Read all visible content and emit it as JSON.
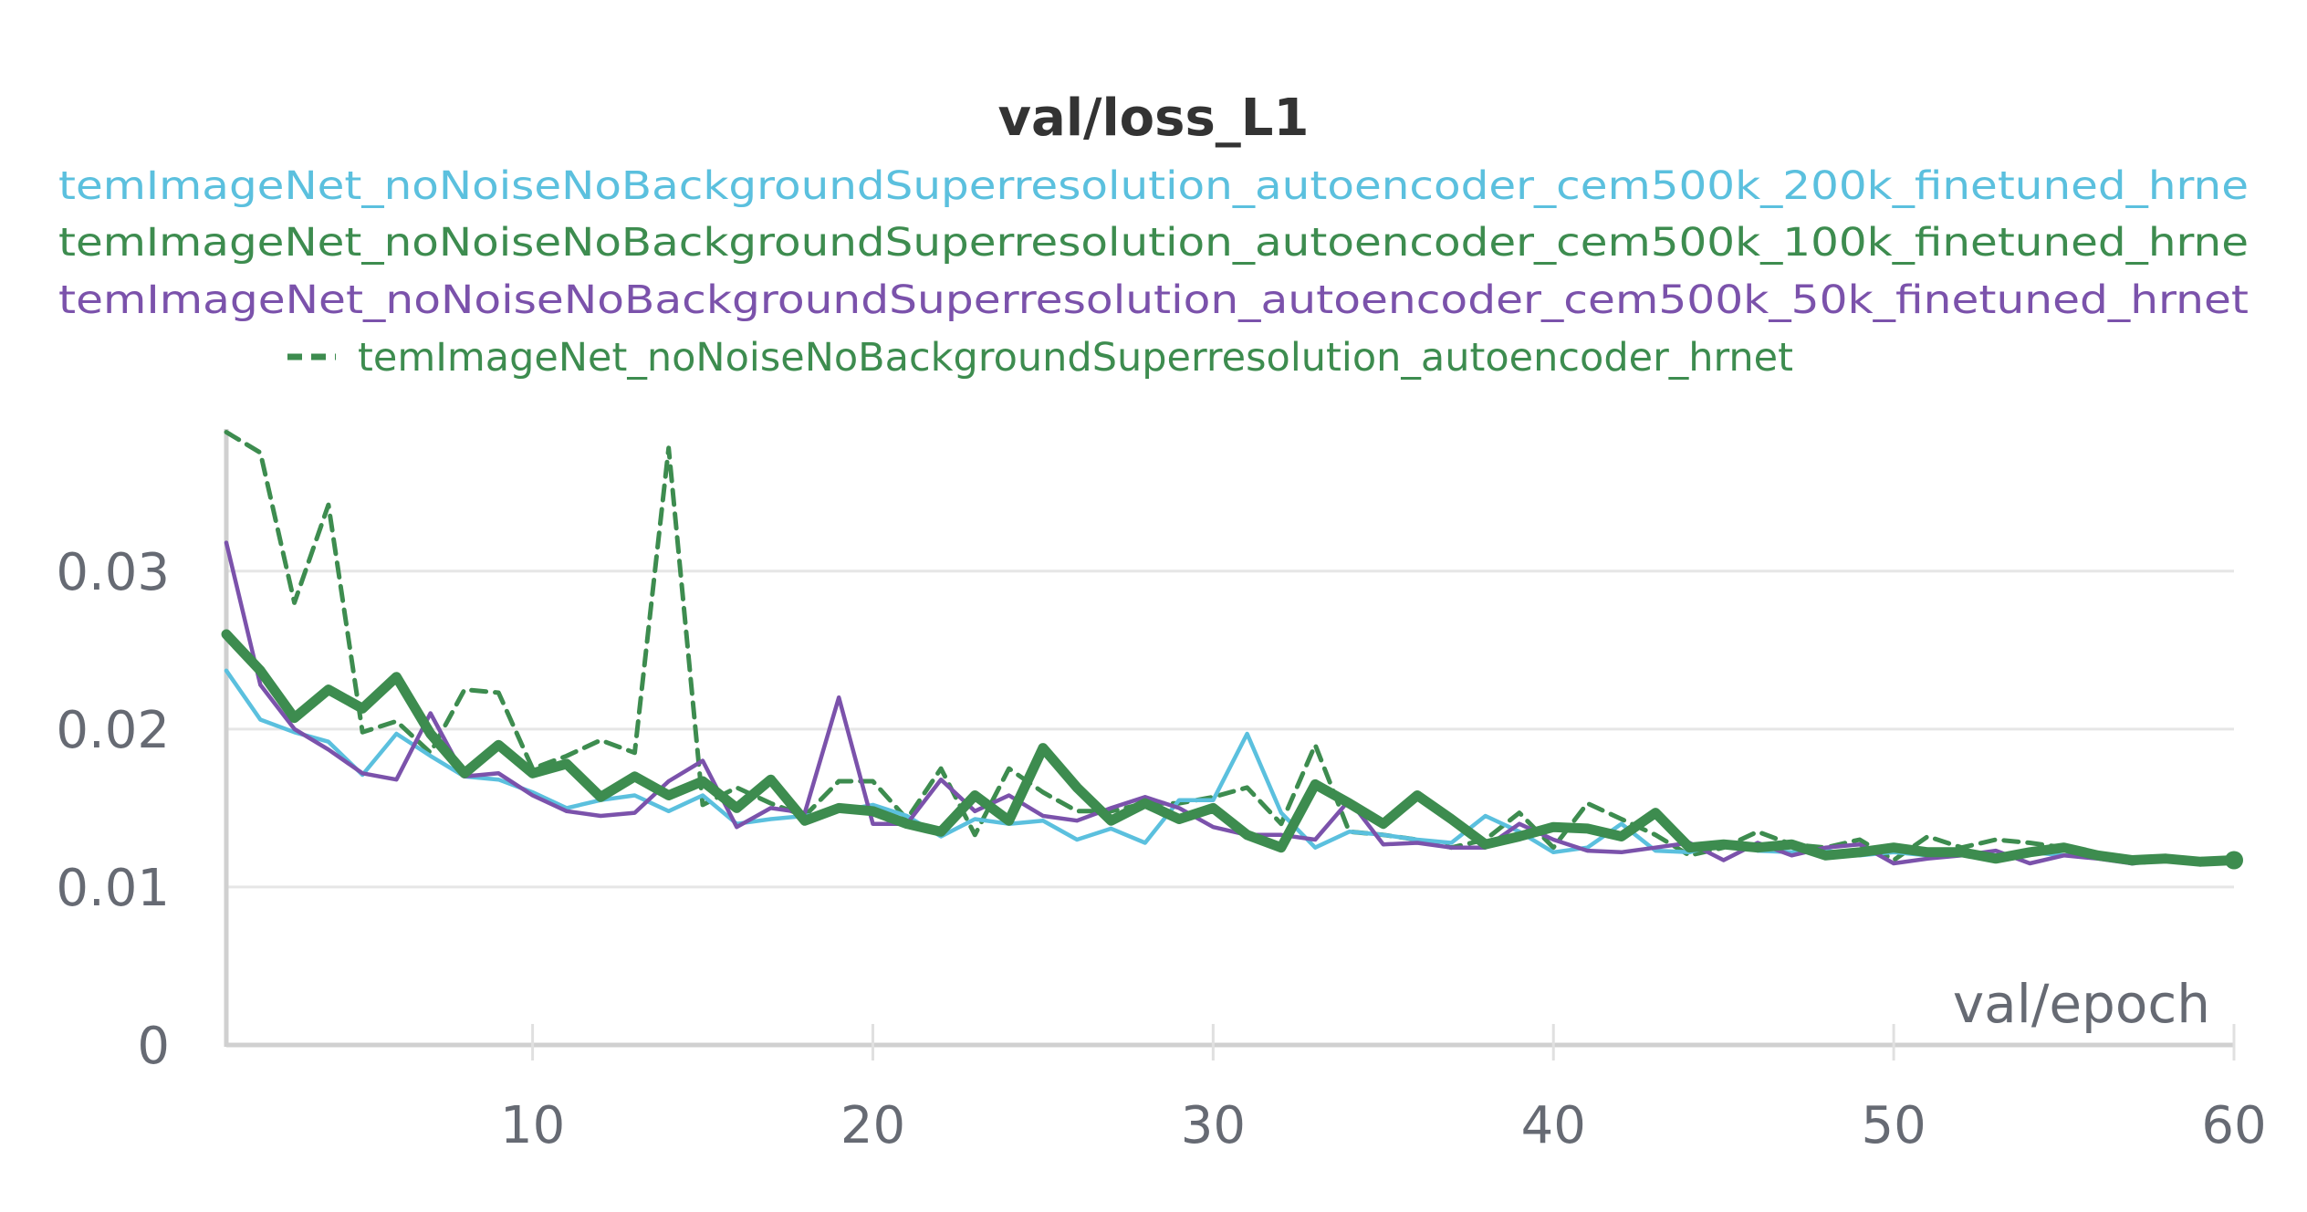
{
  "chart_data": {
    "type": "line",
    "title": "val/loss_L1",
    "xlabel": "val/epoch",
    "ylabel": "",
    "xlim": [
      1,
      60
    ],
    "ylim": [
      0,
      0.039
    ],
    "x_ticks": [
      "10",
      "20",
      "30",
      "40",
      "50",
      "60"
    ],
    "y_ticks": [
      "0",
      "0.01",
      "0.02",
      "0.03"
    ],
    "grid": "horizontal",
    "legend_position": "top",
    "series": [
      {
        "name": "temImageNet_noNoiseNoBackgroundSuperresolution_autoencoder_cem500k_200k_finetuned_hrne",
        "color": "#5bc0de",
        "dash": "solid",
        "width": "thin",
        "x": [
          1,
          2,
          3,
          4,
          5,
          6,
          7,
          8,
          9,
          10,
          11,
          12,
          13,
          14,
          15,
          16,
          17,
          18,
          19,
          20,
          21,
          22,
          23,
          24,
          25,
          26,
          27,
          28,
          29,
          30,
          31,
          32,
          33,
          34,
          35,
          36,
          37,
          38,
          39,
          40,
          41,
          42,
          43,
          44,
          45,
          46,
          47,
          48,
          49,
          50,
          51,
          52,
          53,
          54,
          55,
          56,
          57,
          58,
          59,
          60
        ],
        "y": [
          0.0237,
          0.0206,
          0.0198,
          0.0192,
          0.0171,
          0.0197,
          0.0183,
          0.017,
          0.0168,
          0.016,
          0.015,
          0.0155,
          0.0158,
          0.0148,
          0.0158,
          0.014,
          0.0143,
          0.0145,
          0.0148,
          0.0152,
          0.0145,
          0.0132,
          0.0143,
          0.014,
          0.0142,
          0.013,
          0.0137,
          0.0128,
          0.0155,
          0.0155,
          0.0197,
          0.0147,
          0.0125,
          0.0135,
          0.0133,
          0.013,
          0.0128,
          0.0145,
          0.0135,
          0.0122,
          0.0125,
          0.014,
          0.0123,
          0.0122,
          0.0128,
          0.0123,
          0.0122,
          0.0123,
          0.012,
          0.0122,
          0.012,
          0.0123,
          0.012,
          0.0122,
          0.012,
          0.012,
          0.0117,
          0.0117,
          0.0116,
          0.0117
        ]
      },
      {
        "name": "temImageNet_noNoiseNoBackgroundSuperresolution_autoencoder_cem500k_100k_finetuned_hrne",
        "color": "#3d8c4f",
        "dash": "solid",
        "width": "thick",
        "x": [
          1,
          2,
          3,
          4,
          5,
          6,
          7,
          8,
          9,
          10,
          11,
          12,
          13,
          14,
          15,
          16,
          17,
          18,
          19,
          20,
          21,
          22,
          23,
          24,
          25,
          26,
          27,
          28,
          29,
          30,
          31,
          32,
          33,
          34,
          35,
          36,
          37,
          38,
          39,
          40,
          41,
          42,
          43,
          44,
          45,
          46,
          47,
          48,
          49,
          50,
          51,
          52,
          53,
          54,
          55,
          56,
          57,
          58,
          59,
          60
        ],
        "y": [
          0.026,
          0.0237,
          0.0207,
          0.0225,
          0.0213,
          0.0233,
          0.0197,
          0.0172,
          0.019,
          0.0172,
          0.0178,
          0.0157,
          0.017,
          0.0158,
          0.0167,
          0.015,
          0.0168,
          0.0142,
          0.015,
          0.0148,
          0.014,
          0.0135,
          0.0158,
          0.0142,
          0.0188,
          0.0163,
          0.0142,
          0.0153,
          0.0143,
          0.015,
          0.0133,
          0.0125,
          0.0165,
          0.0153,
          0.014,
          0.0158,
          0.0143,
          0.0127,
          0.0132,
          0.0138,
          0.0137,
          0.0132,
          0.0147,
          0.0125,
          0.0127,
          0.0125,
          0.0127,
          0.012,
          0.0122,
          0.0125,
          0.0122,
          0.0122,
          0.0118,
          0.0122,
          0.0125,
          0.012,
          0.0117,
          0.0118,
          0.0116,
          0.0117
        ]
      },
      {
        "name": "temImageNet_noNoiseNoBackgroundSuperresolution_autoencoder_cem500k_50k_finetuned_hrnet",
        "color": "#7b52ab",
        "dash": "solid",
        "width": "thin",
        "x": [
          1,
          2,
          3,
          4,
          5,
          6,
          7,
          8,
          9,
          10,
          11,
          12,
          13,
          14,
          15,
          16,
          17,
          18,
          19,
          20,
          21,
          22,
          23,
          24,
          25,
          26,
          27,
          28,
          29,
          30,
          31,
          32,
          33,
          34,
          35,
          36,
          37,
          38,
          39,
          40,
          41,
          42,
          43,
          44,
          45,
          46,
          47,
          48,
          49,
          50,
          51,
          52,
          53,
          54,
          55,
          56,
          57,
          58,
          59,
          60
        ],
        "y": [
          0.0318,
          0.0228,
          0.02,
          0.0187,
          0.0172,
          0.0168,
          0.021,
          0.017,
          0.0172,
          0.0158,
          0.0148,
          0.0145,
          0.0147,
          0.0167,
          0.018,
          0.0138,
          0.015,
          0.0147,
          0.022,
          0.014,
          0.014,
          0.0168,
          0.0148,
          0.0158,
          0.0145,
          0.0142,
          0.015,
          0.0157,
          0.015,
          0.0138,
          0.0133,
          0.0133,
          0.013,
          0.0155,
          0.0127,
          0.0128,
          0.0125,
          0.0125,
          0.014,
          0.013,
          0.0123,
          0.0122,
          0.0125,
          0.0128,
          0.0117,
          0.0128,
          0.012,
          0.0125,
          0.0127,
          0.0115,
          0.0118,
          0.012,
          0.0123,
          0.0115,
          0.012,
          0.0118,
          0.0115,
          0.0117,
          0.0116,
          0.0116
        ]
      },
      {
        "name": "temImageNet_noNoiseNoBackgroundSuperresolution_autoencoder_hrnet",
        "color": "#3d8c4f",
        "dash": "dashed",
        "width": "medium",
        "x": [
          1,
          2,
          3,
          4,
          5,
          6,
          7,
          8,
          9,
          10,
          11,
          12,
          13,
          14,
          15,
          16,
          17,
          18,
          19,
          20,
          21,
          22,
          23,
          24,
          25,
          26,
          27,
          28,
          29,
          30,
          31,
          32,
          33,
          34,
          35,
          36,
          37,
          38,
          39,
          40,
          41,
          42,
          43,
          44,
          45,
          46,
          47,
          48,
          49,
          50,
          51,
          52,
          53,
          54,
          55,
          56,
          57,
          58,
          59,
          60
        ],
        "y": [
          0.0388,
          0.0375,
          0.028,
          0.0342,
          0.0198,
          0.0205,
          0.0185,
          0.0225,
          0.0223,
          0.0175,
          0.0183,
          0.0193,
          0.0185,
          0.0378,
          0.0152,
          0.0163,
          0.0153,
          0.0145,
          0.0167,
          0.0167,
          0.0143,
          0.0175,
          0.0133,
          0.0175,
          0.016,
          0.0148,
          0.0148,
          0.0153,
          0.0153,
          0.0157,
          0.0163,
          0.014,
          0.019,
          0.0135,
          0.0133,
          0.013,
          0.0125,
          0.013,
          0.0147,
          0.0125,
          0.0153,
          0.0143,
          0.0133,
          0.012,
          0.0125,
          0.0135,
          0.0127,
          0.0125,
          0.013,
          0.0117,
          0.0132,
          0.0125,
          0.013,
          0.0128,
          0.0125,
          0.012,
          0.0115,
          0.0117,
          0.0115,
          0.0116
        ]
      }
    ]
  }
}
